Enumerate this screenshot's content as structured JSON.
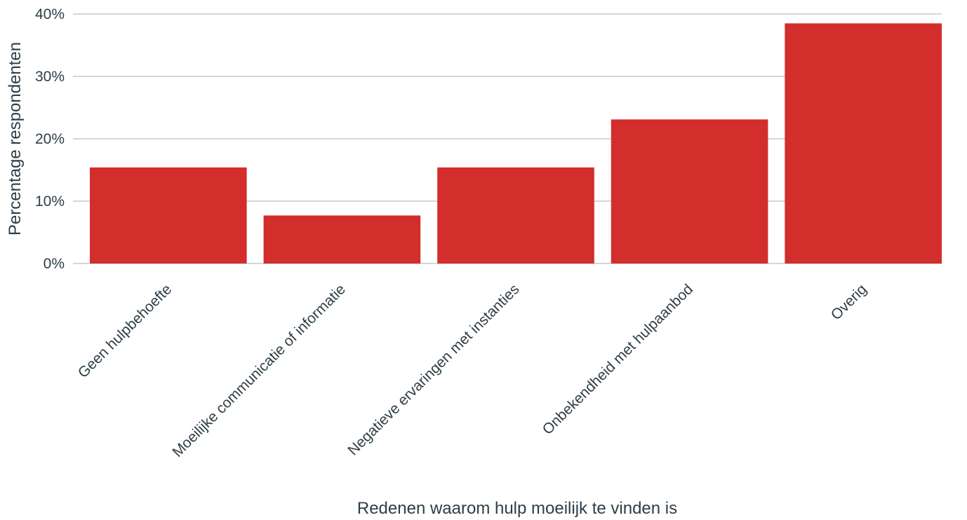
{
  "chart_data": {
    "type": "bar",
    "title": "",
    "xlabel": "Redenen waarom hulp moeilijk te vinden is",
    "ylabel": "Percentage respondenten",
    "categories": [
      "Geen hulpbehoefte",
      "Moeilijke communicatie of informatie",
      "Negatieve ervaringen met instanties",
      "Onbekendheid met hulpaanbod",
      "Overig"
    ],
    "values": [
      15.4,
      7.7,
      15.4,
      23.1,
      38.5
    ],
    "ylim": [
      0,
      40
    ],
    "yticks": [
      0,
      10,
      20,
      30,
      40
    ],
    "ytick_labels": [
      "0%",
      "10%",
      "20%",
      "30%",
      "40%"
    ],
    "grid": true,
    "legend": "none",
    "bar_color": "#d32d2c"
  }
}
